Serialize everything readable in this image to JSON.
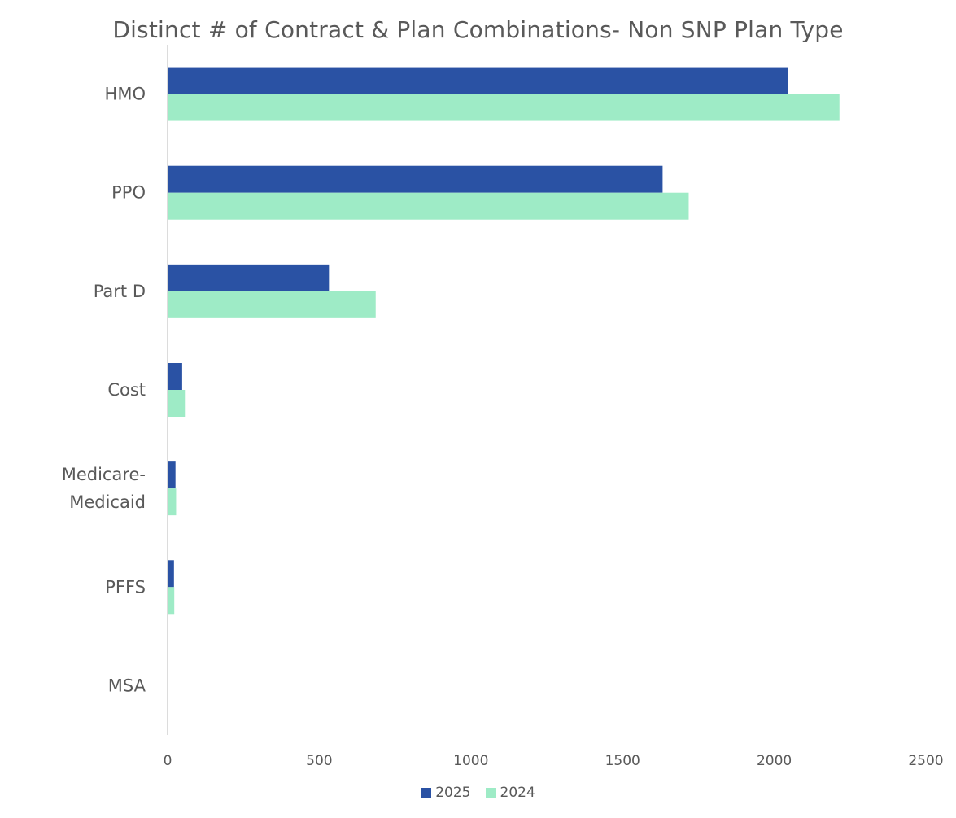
{
  "chart_data": {
    "type": "bar",
    "orientation": "horizontal",
    "title": "Distinct # of Contract & Plan Combinations- Non SNP Plan Type",
    "categories": [
      "HMO",
      "PPO",
      "Part D",
      "Cost",
      "Medicare-Medicaid",
      "PFFS",
      "MSA"
    ],
    "category_label_lines": [
      [
        "HMO"
      ],
      [
        "PPO"
      ],
      [
        "Part D"
      ],
      [
        "Cost"
      ],
      [
        "Medicare-",
        "Medicaid"
      ],
      [
        "PFFS"
      ],
      [
        "MSA"
      ]
    ],
    "series": [
      {
        "name": "2025",
        "color": "#2A52A4",
        "values": [
          2045,
          1632,
          532,
          48,
          26,
          21,
          0
        ]
      },
      {
        "name": "2024",
        "color": "#9EEBC6",
        "values": [
          2215,
          1718,
          686,
          57,
          28,
          22,
          0
        ]
      }
    ],
    "xlim": [
      0,
      2500
    ],
    "xticks": [
      0,
      500,
      1000,
      1500,
      2000,
      2500
    ],
    "xlabel": "",
    "ylabel": "",
    "grid": false,
    "legend_position": "bottom"
  }
}
